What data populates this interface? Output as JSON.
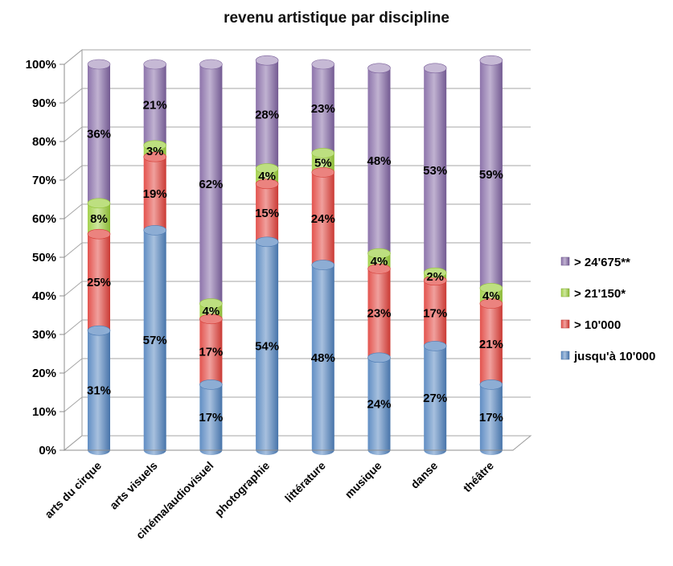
{
  "chart_data": {
    "type": "bar",
    "stacked": true,
    "title": "revenu artistique par discipline",
    "categories": [
      "arts du cirque",
      "arts visuels",
      "cinéma/audiovisuel",
      "photographie",
      "littérature",
      "musique",
      "danse",
      "théâtre"
    ],
    "series": [
      {
        "name": "jusqu'à 10'000",
        "color": "#4f81bd",
        "values": [
          31,
          57,
          17,
          54,
          48,
          24,
          27,
          17
        ]
      },
      {
        "name": "> 10'000",
        "color": "#e0403a",
        "values": [
          25,
          19,
          17,
          15,
          24,
          23,
          17,
          21
        ]
      },
      {
        "name": "> 21'150*",
        "color": "#9acd3b",
        "values": [
          8,
          3,
          4,
          4,
          5,
          4,
          2,
          4
        ]
      },
      {
        "name": "> 24'675**",
        "color": "#8064a2",
        "values": [
          36,
          21,
          62,
          28,
          23,
          48,
          53,
          59
        ]
      }
    ],
    "yticks": [
      "0%",
      "10%",
      "20%",
      "30%",
      "40%",
      "50%",
      "60%",
      "70%",
      "80%",
      "90%",
      "100%"
    ],
    "ylim": [
      0,
      100
    ],
    "grid": true,
    "legend_position": "right"
  }
}
